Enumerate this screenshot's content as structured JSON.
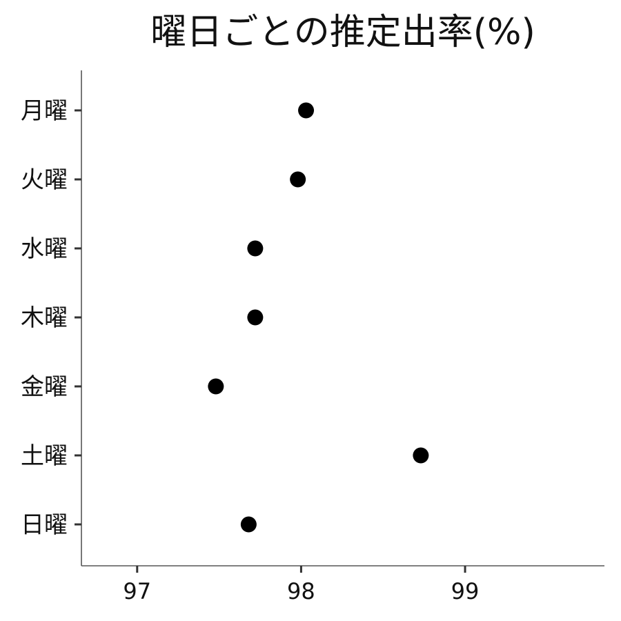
{
  "chart_data": {
    "type": "scatter",
    "title": "曜日ごとの推定出率(%)",
    "xlabel": "",
    "ylabel": "",
    "categories": [
      "月曜",
      "火曜",
      "水曜",
      "木曜",
      "金曜",
      "土曜",
      "日曜"
    ],
    "values": [
      98.03,
      97.98,
      97.72,
      97.72,
      97.48,
      98.73,
      97.68
    ],
    "xlim": [
      96.66,
      99.85
    ],
    "xticks": [
      97,
      98,
      99
    ],
    "grid": false,
    "legend": "none",
    "point_color": "#000000"
  }
}
